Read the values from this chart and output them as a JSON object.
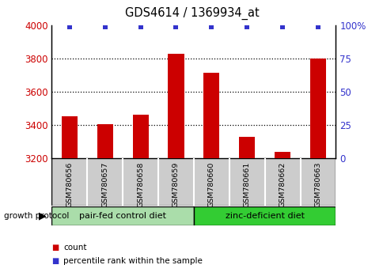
{
  "title": "GDS4614 / 1369934_at",
  "samples": [
    "GSM780656",
    "GSM780657",
    "GSM780658",
    "GSM780659",
    "GSM780660",
    "GSM780661",
    "GSM780662",
    "GSM780663"
  ],
  "counts": [
    3450,
    3405,
    3460,
    3830,
    3715,
    3330,
    3240,
    3800
  ],
  "percentiles": [
    99,
    99,
    99,
    99,
    99,
    99,
    99,
    99
  ],
  "ylim": [
    3200,
    4000
  ],
  "yticks_left": [
    3200,
    3400,
    3600,
    3800,
    4000
  ],
  "yticks_right": [
    0,
    25,
    50,
    75,
    100
  ],
  "bar_color": "#cc0000",
  "dot_color": "#3333cc",
  "groups": [
    {
      "label": "pair-fed control diet",
      "start": 0,
      "end": 4,
      "color": "#aaddaa"
    },
    {
      "label": "zinc-deficient diet",
      "start": 4,
      "end": 8,
      "color": "#44cc44"
    }
  ],
  "group_label": "growth protocol",
  "legend_count_label": "count",
  "legend_pct_label": "percentile rank within the sample",
  "left_tick_color": "#cc0000",
  "right_tick_color": "#3333cc",
  "title_color": "#000000",
  "sample_box_color": "#cccccc",
  "group_box_color1": "#aaddaa",
  "group_box_color2": "#33cc33",
  "dotted_grid_color": "#555555",
  "bar_width": 0.45
}
